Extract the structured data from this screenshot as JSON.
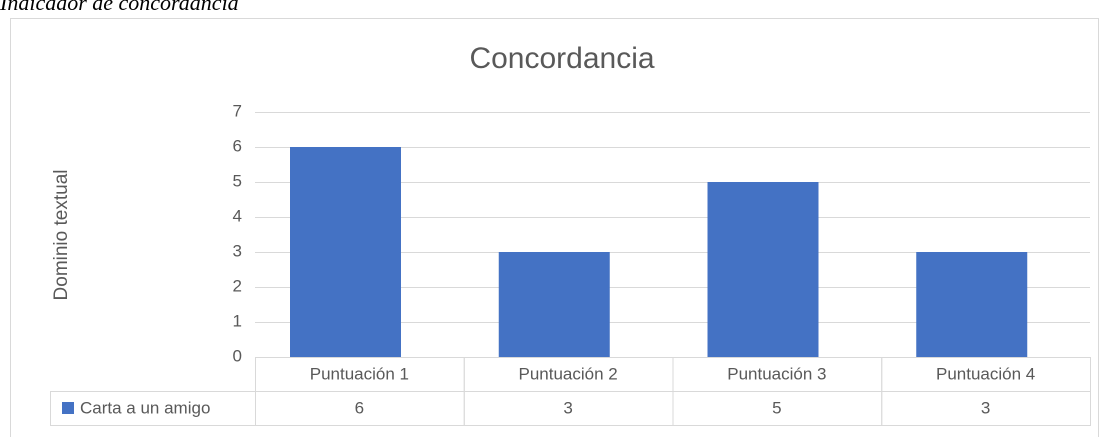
{
  "caption": "Indicador de concordancia",
  "chart_data": {
    "type": "bar",
    "title": "Concordancia",
    "y_label": "Dominio textual",
    "categories": [
      "Puntuación 1",
      "Puntuación 2",
      "Puntuación 3",
      "Puntuación 4"
    ],
    "series": [
      {
        "name": "Carta a un amigo",
        "color": "#4472c4",
        "values": [
          6,
          3,
          5,
          3
        ]
      }
    ],
    "ylim": [
      0,
      7
    ],
    "yticks": [
      0,
      1,
      2,
      3,
      4,
      5,
      6,
      7
    ],
    "grid": true,
    "data_table": true
  }
}
